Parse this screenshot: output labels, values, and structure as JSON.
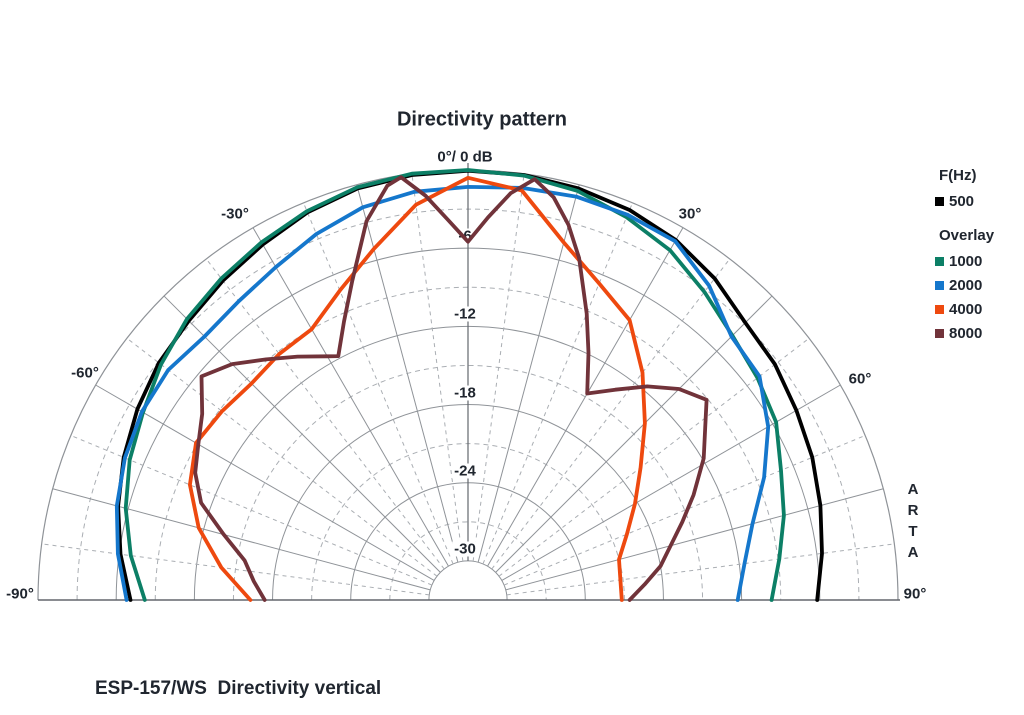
{
  "header": {
    "title": "Directivity pattern"
  },
  "plot": {
    "apex_label": "0°/ 0 dB",
    "angle_labels": {
      "n30": "-30°",
      "p30": "30°",
      "n60": "-60°",
      "p60": "60°",
      "n90": "-90°",
      "p90": "90°"
    },
    "db_labels": [
      "-6",
      "-12",
      "-18",
      "-24",
      "-30"
    ],
    "watermark_letters": [
      "A",
      "R",
      "T",
      "A"
    ]
  },
  "legend": {
    "freq_heading": "F(Hz)",
    "primary": {
      "label": "500",
      "color": "#000000"
    },
    "overlay_heading": "Overlay",
    "overlays": [
      {
        "label": "1000",
        "color": "#0c7f66"
      },
      {
        "label": "2000",
        "color": "#1577cc"
      },
      {
        "label": "4000",
        "color": "#ee490f"
      },
      {
        "label": "8000",
        "color": "#71333a"
      }
    ]
  },
  "footer": {
    "caption": "ESP-157/WS  Directivity vertical"
  },
  "colors": {
    "grid_solid": "#8f9398",
    "grid_dashed": "#aaaeb3",
    "axis": "#63676d",
    "text": "#20262f",
    "background": "#ffffff"
  },
  "chart_data": {
    "type": "line",
    "polar": true,
    "title": "Directivity pattern",
    "subtitle": "ESP-157/WS  Directivity vertical",
    "legend_position": "right",
    "angle_axis": {
      "unit": "deg",
      "min": -90,
      "max": 90,
      "solid_grid_step_deg": 15,
      "dashed_grid_step_deg": 7.5
    },
    "r_axis": {
      "unit": "dB",
      "max": 0,
      "min": -33,
      "solid_rings_db": [
        -6,
        -12,
        -18,
        -24,
        -30
      ],
      "dashed_rings_db": [
        -3,
        -9,
        -15,
        -21,
        -27
      ]
    },
    "series": [
      {
        "name": "500",
        "color": "#000000",
        "points": [
          [
            -90,
            -7.1
          ],
          [
            -82.5,
            -6.1
          ],
          [
            -75,
            -5.2
          ],
          [
            -67.5,
            -4.4
          ],
          [
            -60,
            -3.7
          ],
          [
            -52.5,
            -3.1
          ],
          [
            -45,
            -2.7
          ],
          [
            -37.5,
            -2.1
          ],
          [
            -30,
            -1.5
          ],
          [
            -22.5,
            -0.8
          ],
          [
            -15,
            -0.3
          ],
          [
            -7.5,
            -0.1
          ],
          [
            0,
            -0.05
          ],
          [
            7.5,
            -0.1
          ],
          [
            15,
            -0.3
          ],
          [
            22.5,
            -0.6
          ],
          [
            30,
            -1.1
          ],
          [
            37.5,
            -1.9
          ],
          [
            45,
            -2.9
          ],
          [
            52.5,
            -3.3
          ],
          [
            60,
            -3.9
          ],
          [
            67.5,
            -4.4
          ],
          [
            75,
            -5.0
          ],
          [
            82.5,
            -5.6
          ],
          [
            90,
            -6.2
          ]
        ]
      },
      {
        "name": "1000",
        "color": "#0c7f66",
        "points": [
          [
            -90,
            -8.2
          ],
          [
            -82.5,
            -6.9
          ],
          [
            -75,
            -5.8
          ],
          [
            -67.5,
            -4.9
          ],
          [
            -60,
            -4.2
          ],
          [
            -52.5,
            -3.3
          ],
          [
            -45,
            -2.5
          ],
          [
            -37.5,
            -1.9
          ],
          [
            -30,
            -1.3
          ],
          [
            -22.5,
            -0.7
          ],
          [
            -15,
            -0.2
          ],
          [
            -7.5,
            0
          ],
          [
            0,
            0
          ],
          [
            7.5,
            -0.15
          ],
          [
            15,
            -0.5
          ],
          [
            22.5,
            -1.2
          ],
          [
            30,
            -2.0
          ],
          [
            37.5,
            -3.2
          ],
          [
            45,
            -4.3
          ],
          [
            52.5,
            -5.0
          ],
          [
            60,
            -5.7
          ],
          [
            67.5,
            -7.0
          ],
          [
            75,
            -7.9
          ],
          [
            82.5,
            -8.9
          ],
          [
            90,
            -9.7
          ]
        ]
      },
      {
        "name": "2000",
        "color": "#1577cc",
        "points": [
          [
            -90,
            -6.8
          ],
          [
            -82.5,
            -5.9
          ],
          [
            -75,
            -5.1
          ],
          [
            -67.5,
            -4.5
          ],
          [
            -60,
            -4.1
          ],
          [
            -52.5,
            -4.0
          ],
          [
            -45,
            -4.4
          ],
          [
            -37.5,
            -4.1
          ],
          [
            -30,
            -3.5
          ],
          [
            -22.5,
            -2.6
          ],
          [
            -15,
            -1.8
          ],
          [
            -7.5,
            -1.4
          ],
          [
            0,
            -1.3
          ],
          [
            7.5,
            -1.1
          ],
          [
            15,
            -0.95
          ],
          [
            22.5,
            -1.0
          ],
          [
            30,
            -1.2
          ],
          [
            37.5,
            -2.6
          ],
          [
            45,
            -4.4
          ],
          [
            52.5,
            -4.8
          ],
          [
            60,
            -6.4
          ],
          [
            67.5,
            -8.4
          ],
          [
            75,
            -10.4
          ],
          [
            82.5,
            -11.6
          ],
          [
            90,
            -12.3
          ]
        ]
      },
      {
        "name": "4000",
        "color": "#ee490f",
        "points": [
          [
            -90,
            -16.3
          ],
          [
            -82.5,
            -13.9
          ],
          [
            -75,
            -11.6
          ],
          [
            -67.5,
            -9.9
          ],
          [
            -60,
            -8.9
          ],
          [
            -52.5,
            -9.2
          ],
          [
            -45,
            -9.5
          ],
          [
            -37.5,
            -9.2
          ],
          [
            -30,
            -9.0
          ],
          [
            -22.5,
            -7.3
          ],
          [
            -15,
            -5.1
          ],
          [
            -7.5,
            -2.4
          ],
          [
            0,
            -0.6
          ],
          [
            7.5,
            -1.3
          ],
          [
            15,
            -4.6
          ],
          [
            22.5,
            -6.7
          ],
          [
            30,
            -8.2
          ],
          [
            37.5,
            -11.0
          ],
          [
            45,
            -13.8
          ],
          [
            52.5,
            -16.3
          ],
          [
            60,
            -18.2
          ],
          [
            67.5,
            -19.8
          ],
          [
            75,
            -21.0
          ],
          [
            82.5,
            -21.2
          ],
          [
            90,
            -21.2
          ]
        ]
      },
      {
        "name": "8000",
        "color": "#71333a",
        "points": [
          [
            -90,
            -17.4
          ],
          [
            -85,
            -16.5
          ],
          [
            -80,
            -15.6
          ],
          [
            -75,
            -13.6
          ],
          [
            -70,
            -11.2
          ],
          [
            -65,
            -9.9
          ],
          [
            -60,
            -9.1
          ],
          [
            -55,
            -8.1
          ],
          [
            -50,
            -6.3
          ],
          [
            -45,
            -7.4
          ],
          [
            -40,
            -8.9
          ],
          [
            -35,
            -10.2
          ],
          [
            -30,
            -11.4
          ],
          [
            -28,
            -11.8
          ],
          [
            -24,
            -9.6
          ],
          [
            -20,
            -7.0
          ],
          [
            -15,
            -2.9
          ],
          [
            -11,
            -0.6
          ],
          [
            -9,
            -0.15
          ],
          [
            -6,
            -1.8
          ],
          [
            -3,
            -3.8
          ],
          [
            0,
            -5.5
          ],
          [
            3,
            -3.6
          ],
          [
            6,
            -1.6
          ],
          [
            9,
            -0.3
          ],
          [
            12,
            -1.4
          ],
          [
            15,
            -3.2
          ],
          [
            18,
            -5.4
          ],
          [
            22.5,
            -9.2
          ],
          [
            26,
            -11.9
          ],
          [
            30,
            -14.7
          ],
          [
            35,
            -13.3
          ],
          [
            40,
            -11.6
          ],
          [
            45,
            -10.1
          ],
          [
            50,
            -9.1
          ],
          [
            54,
            -10.5
          ],
          [
            59,
            -11.9
          ],
          [
            65,
            -13.9
          ],
          [
            70,
            -15.5
          ],
          [
            75,
            -16.9
          ],
          [
            80,
            -18.0
          ],
          [
            85,
            -19.4
          ],
          [
            90,
            -20.6
          ]
        ]
      }
    ]
  }
}
